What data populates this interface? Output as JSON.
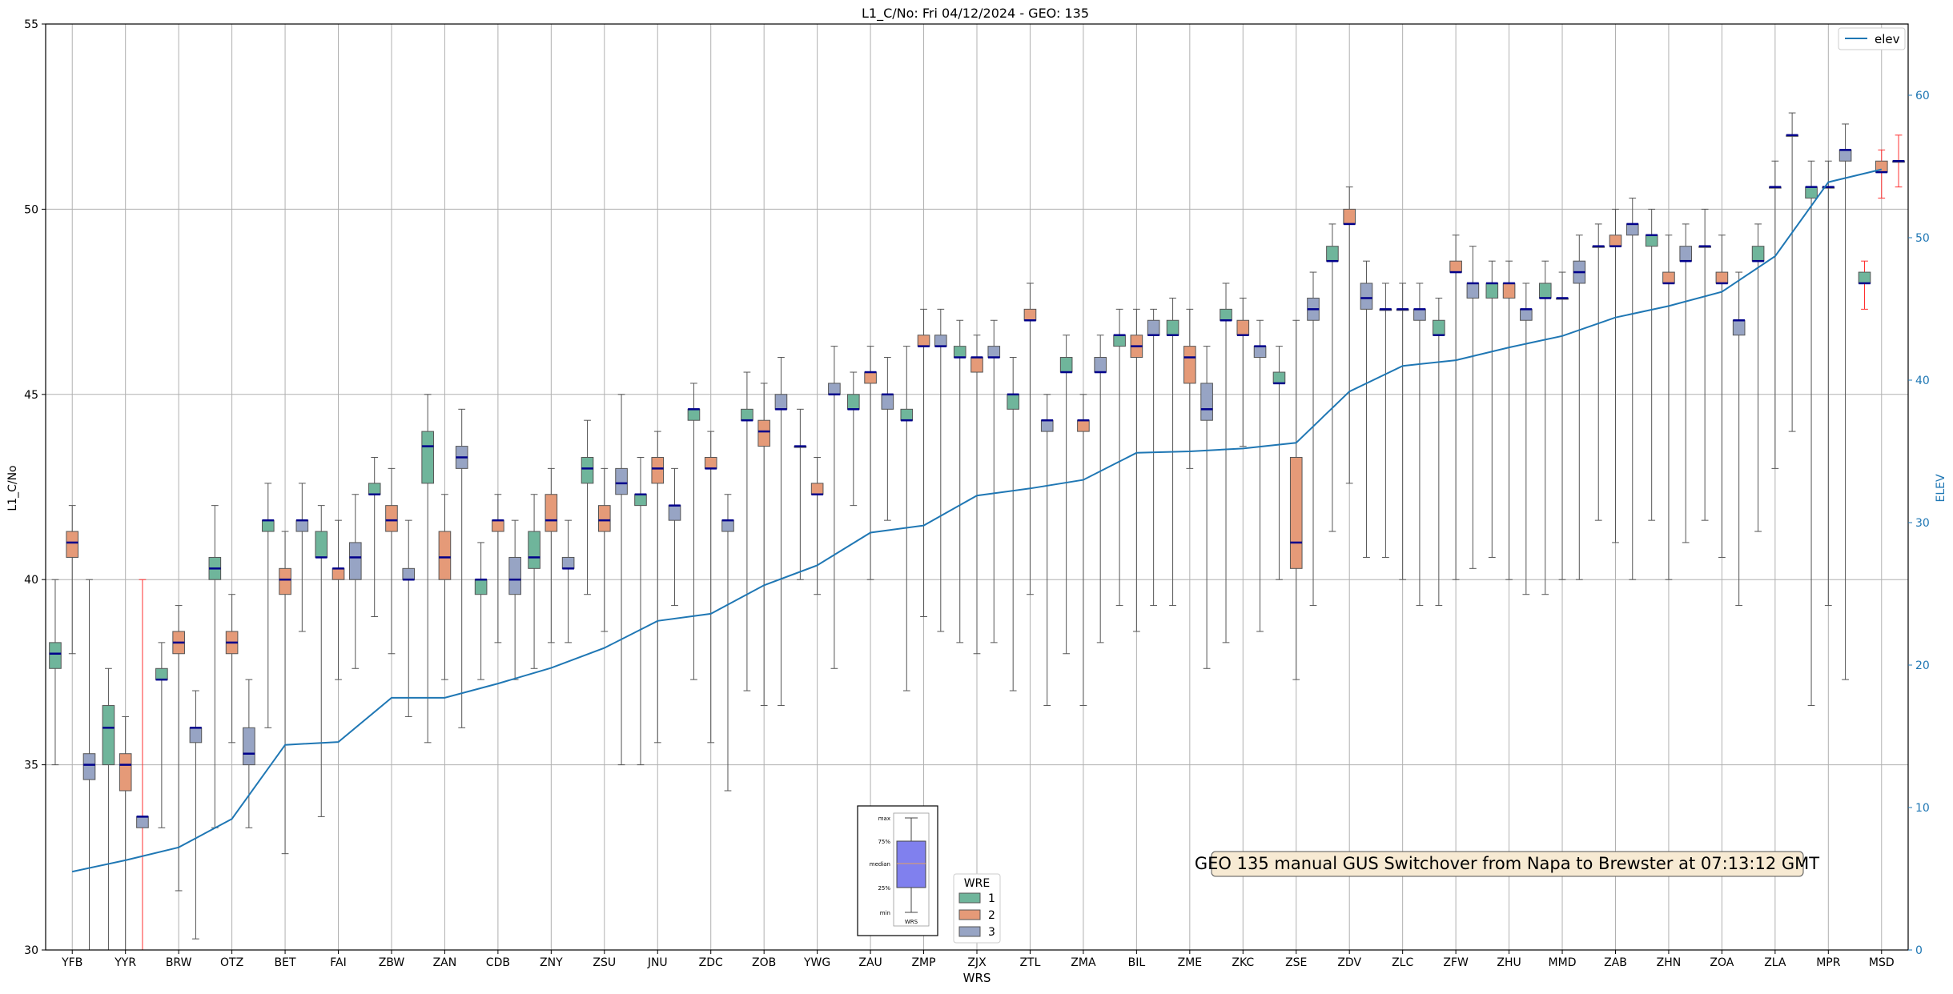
{
  "chart_data": {
    "type": "box",
    "title": "L1_C/No: Fri 04/12/2024 - GEO: 135",
    "xlabel": "WRS",
    "ylabel": "L1_C/No",
    "y2label": "ELEV",
    "ylim": [
      30,
      55
    ],
    "y2lim": [
      0,
      65
    ],
    "yticks": [
      30,
      35,
      40,
      45,
      50,
      55
    ],
    "y2ticks": [
      0,
      10,
      20,
      30,
      40,
      50,
      60
    ],
    "grid": true,
    "legend_line": {
      "label": "elev",
      "position": "top-right"
    },
    "legend_groups": {
      "title": "WRE",
      "position": "bottom-center",
      "entries": [
        "1",
        "2",
        "3"
      ]
    },
    "group_colors": {
      "1": "#6fb59b",
      "2": "#e59a78",
      "3": "#97a4c4"
    },
    "median_color": "#00008b",
    "whisker_color": "#555555",
    "elev_color": "#1f77b4",
    "annotation": "GEO 135 manual GUS Switchover from Napa to Brewster at 07:13:12 GMT",
    "key_inset": {
      "labels": [
        "max",
        "75%",
        "median",
        "25%",
        "min"
      ],
      "xlabel": "WRS",
      "box_color": "#8080ee"
    },
    "stations": [
      "YFB",
      "YYR",
      "BRW",
      "OTZ",
      "BET",
      "FAI",
      "ZBW",
      "ZAN",
      "CDB",
      "ZNY",
      "ZSU",
      "JNU",
      "ZDC",
      "ZOB",
      "YWG",
      "ZAU",
      "ZMP",
      "ZJX",
      "ZTL",
      "ZMA",
      "BIL",
      "ZME",
      "ZKC",
      "ZSE",
      "ZDV",
      "ZLC",
      "ZFW",
      "ZHU",
      "MMD",
      "ZAB",
      "ZHN",
      "ZOA",
      "ZLA",
      "MPR",
      "MSD"
    ],
    "elev": [
      5.5,
      6.3,
      7.2,
      9.2,
      14.4,
      14.6,
      17.7,
      17.7,
      18.7,
      19.8,
      21.2,
      23.1,
      23.6,
      25.6,
      27.0,
      29.3,
      29.8,
      31.9,
      32.4,
      33.0,
      34.9,
      35.0,
      35.2,
      35.6,
      39.2,
      41.0,
      41.4,
      42.3,
      43.1,
      44.4,
      45.2,
      46.2,
      48.7,
      53.9,
      54.8
    ],
    "boxes": [
      {
        "station": "YFB",
        "wre": "1",
        "min": 35.0,
        "q1": 37.6,
        "median": 38.0,
        "q3": 38.3,
        "max": 40.0
      },
      {
        "station": "YFB",
        "wre": "2",
        "min": 38.0,
        "q1": 40.6,
        "median": 41.0,
        "q3": 41.3,
        "max": 42.0
      },
      {
        "station": "YFB",
        "wre": "3",
        "min": 30.0,
        "q1": 34.6,
        "median": 35.0,
        "q3": 35.3,
        "max": 40.0
      },
      {
        "station": "YYR",
        "wre": "1",
        "min": 30.0,
        "q1": 35.0,
        "median": 36.0,
        "q3": 36.6,
        "max": 37.6
      },
      {
        "station": "YYR",
        "wre": "2",
        "min": 30.0,
        "q1": 34.3,
        "median": 35.0,
        "q3": 35.3,
        "max": 36.3
      },
      {
        "station": "YYR",
        "wre": "3",
        "min": 30.0,
        "q1": 33.3,
        "median": 33.6,
        "q3": 33.6,
        "max": 40.0,
        "red_whisker": true
      },
      {
        "station": "BRW",
        "wre": "1",
        "min": 33.3,
        "q1": 37.3,
        "median": 37.3,
        "q3": 37.6,
        "max": 38.3
      },
      {
        "station": "BRW",
        "wre": "2",
        "min": 31.6,
        "q1": 38.0,
        "median": 38.3,
        "q3": 38.6,
        "max": 39.3
      },
      {
        "station": "BRW",
        "wre": "3",
        "min": 30.3,
        "q1": 35.6,
        "median": 36.0,
        "q3": 36.0,
        "max": 37.0
      },
      {
        "station": "OTZ",
        "wre": "1",
        "min": 33.3,
        "q1": 40.0,
        "median": 40.3,
        "q3": 40.6,
        "max": 42.0
      },
      {
        "station": "OTZ",
        "wre": "2",
        "min": 35.6,
        "q1": 38.0,
        "median": 38.3,
        "q3": 38.6,
        "max": 39.6
      },
      {
        "station": "OTZ",
        "wre": "3",
        "min": 33.3,
        "q1": 35.0,
        "median": 35.3,
        "q3": 36.0,
        "max": 37.3
      },
      {
        "station": "BET",
        "wre": "1",
        "min": 36.0,
        "q1": 41.3,
        "median": 41.6,
        "q3": 41.6,
        "max": 42.6
      },
      {
        "station": "BET",
        "wre": "2",
        "min": 32.6,
        "q1": 39.6,
        "median": 40.0,
        "q3": 40.3,
        "max": 41.3
      },
      {
        "station": "BET",
        "wre": "3",
        "min": 38.6,
        "q1": 41.3,
        "median": 41.6,
        "q3": 41.6,
        "max": 42.6
      },
      {
        "station": "FAI",
        "wre": "1",
        "min": 33.6,
        "q1": 40.6,
        "median": 40.6,
        "q3": 41.3,
        "max": 42.0
      },
      {
        "station": "FAI",
        "wre": "2",
        "min": 37.3,
        "q1": 40.0,
        "median": 40.3,
        "q3": 40.3,
        "max": 41.6
      },
      {
        "station": "FAI",
        "wre": "3",
        "min": 37.6,
        "q1": 40.0,
        "median": 40.6,
        "q3": 41.0,
        "max": 42.3
      },
      {
        "station": "ZBW",
        "wre": "1",
        "min": 39.0,
        "q1": 42.3,
        "median": 42.3,
        "q3": 42.6,
        "max": 43.3
      },
      {
        "station": "ZBW",
        "wre": "2",
        "min": 38.0,
        "q1": 41.3,
        "median": 41.6,
        "q3": 42.0,
        "max": 43.0
      },
      {
        "station": "ZBW",
        "wre": "3",
        "min": 36.3,
        "q1": 40.0,
        "median": 40.0,
        "q3": 40.3,
        "max": 41.6
      },
      {
        "station": "ZAN",
        "wre": "1",
        "min": 35.6,
        "q1": 42.6,
        "median": 43.6,
        "q3": 44.0,
        "max": 45.0
      },
      {
        "station": "ZAN",
        "wre": "2",
        "min": 37.3,
        "q1": 40.0,
        "median": 40.6,
        "q3": 41.3,
        "max": 42.3
      },
      {
        "station": "ZAN",
        "wre": "3",
        "min": 36.0,
        "q1": 43.0,
        "median": 43.3,
        "q3": 43.6,
        "max": 44.6
      },
      {
        "station": "CDB",
        "wre": "1",
        "min": 37.3,
        "q1": 39.6,
        "median": 40.0,
        "q3": 40.0,
        "max": 41.0
      },
      {
        "station": "CDB",
        "wre": "2",
        "min": 38.3,
        "q1": 41.3,
        "median": 41.6,
        "q3": 41.6,
        "max": 42.3
      },
      {
        "station": "CDB",
        "wre": "3",
        "min": 37.3,
        "q1": 39.6,
        "median": 40.0,
        "q3": 40.6,
        "max": 41.6
      },
      {
        "station": "ZNY",
        "wre": "1",
        "min": 37.6,
        "q1": 40.3,
        "median": 40.6,
        "q3": 41.3,
        "max": 42.3
      },
      {
        "station": "ZNY",
        "wre": "2",
        "min": 38.3,
        "q1": 41.3,
        "median": 41.6,
        "q3": 42.3,
        "max": 43.0
      },
      {
        "station": "ZNY",
        "wre": "3",
        "min": 38.3,
        "q1": 40.3,
        "median": 40.3,
        "q3": 40.6,
        "max": 41.6
      },
      {
        "station": "ZSU",
        "wre": "1",
        "min": 39.6,
        "q1": 42.6,
        "median": 43.0,
        "q3": 43.3,
        "max": 44.3
      },
      {
        "station": "ZSU",
        "wre": "2",
        "min": 38.6,
        "q1": 41.3,
        "median": 41.6,
        "q3": 42.0,
        "max": 43.0
      },
      {
        "station": "ZSU",
        "wre": "3",
        "min": 35.0,
        "q1": 42.3,
        "median": 42.6,
        "q3": 43.0,
        "max": 45.0
      },
      {
        "station": "JNU",
        "wre": "1",
        "min": 35.0,
        "q1": 42.0,
        "median": 42.3,
        "q3": 42.3,
        "max": 43.3
      },
      {
        "station": "JNU",
        "wre": "2",
        "min": 35.6,
        "q1": 42.6,
        "median": 43.0,
        "q3": 43.3,
        "max": 44.0
      },
      {
        "station": "JNU",
        "wre": "3",
        "min": 39.3,
        "q1": 41.6,
        "median": 42.0,
        "q3": 42.0,
        "max": 43.0
      },
      {
        "station": "ZDC",
        "wre": "1",
        "min": 37.3,
        "q1": 44.3,
        "median": 44.6,
        "q3": 44.6,
        "max": 45.3
      },
      {
        "station": "ZDC",
        "wre": "2",
        "min": 35.6,
        "q1": 43.0,
        "median": 43.0,
        "q3": 43.3,
        "max": 44.0
      },
      {
        "station": "ZDC",
        "wre": "3",
        "min": 34.3,
        "q1": 41.3,
        "median": 41.6,
        "q3": 41.6,
        "max": 42.3
      },
      {
        "station": "ZOB",
        "wre": "1",
        "min": 37.0,
        "q1": 44.3,
        "median": 44.3,
        "q3": 44.6,
        "max": 45.6
      },
      {
        "station": "ZOB",
        "wre": "2",
        "min": 36.6,
        "q1": 43.6,
        "median": 44.0,
        "q3": 44.3,
        "max": 45.3
      },
      {
        "station": "ZOB",
        "wre": "3",
        "min": 36.6,
        "q1": 44.6,
        "median": 44.6,
        "q3": 45.0,
        "max": 46.0
      },
      {
        "station": "YWG",
        "wre": "1",
        "min": 40.0,
        "q1": 43.6,
        "median": 43.6,
        "q3": 43.6,
        "max": 44.6
      },
      {
        "station": "YWG",
        "wre": "2",
        "min": 39.6,
        "q1": 42.3,
        "median": 42.3,
        "q3": 42.6,
        "max": 43.3
      },
      {
        "station": "YWG",
        "wre": "3",
        "min": 37.6,
        "q1": 45.0,
        "median": 45.0,
        "q3": 45.3,
        "max": 46.3
      },
      {
        "station": "ZAU",
        "wre": "1",
        "min": 42.0,
        "q1": 44.6,
        "median": 44.6,
        "q3": 45.0,
        "max": 45.6
      },
      {
        "station": "ZAU",
        "wre": "2",
        "min": 40.0,
        "q1": 45.3,
        "median": 45.6,
        "q3": 45.6,
        "max": 46.3
      },
      {
        "station": "ZAU",
        "wre": "3",
        "min": 41.6,
        "q1": 44.6,
        "median": 45.0,
        "q3": 45.0,
        "max": 46.0
      },
      {
        "station": "ZMP",
        "wre": "1",
        "min": 37.0,
        "q1": 44.3,
        "median": 44.3,
        "q3": 44.6,
        "max": 46.3
      },
      {
        "station": "ZMP",
        "wre": "2",
        "min": 39.0,
        "q1": 46.3,
        "median": 46.3,
        "q3": 46.6,
        "max": 47.3
      },
      {
        "station": "ZMP",
        "wre": "3",
        "min": 38.6,
        "q1": 46.3,
        "median": 46.3,
        "q3": 46.6,
        "max": 47.3
      },
      {
        "station": "ZJX",
        "wre": "1",
        "min": 38.3,
        "q1": 46.0,
        "median": 46.0,
        "q3": 46.3,
        "max": 47.0
      },
      {
        "station": "ZJX",
        "wre": "2",
        "min": 38.0,
        "q1": 45.6,
        "median": 46.0,
        "q3": 46.0,
        "max": 46.6
      },
      {
        "station": "ZJX",
        "wre": "3",
        "min": 38.3,
        "q1": 46.0,
        "median": 46.0,
        "q3": 46.3,
        "max": 47.0
      },
      {
        "station": "ZTL",
        "wre": "1",
        "min": 37.0,
        "q1": 44.6,
        "median": 45.0,
        "q3": 45.0,
        "max": 46.0
      },
      {
        "station": "ZTL",
        "wre": "2",
        "min": 39.6,
        "q1": 47.0,
        "median": 47.0,
        "q3": 47.3,
        "max": 48.0
      },
      {
        "station": "ZTL",
        "wre": "3",
        "min": 36.6,
        "q1": 44.0,
        "median": 44.3,
        "q3": 44.3,
        "max": 45.0
      },
      {
        "station": "ZMA",
        "wre": "1",
        "min": 38.0,
        "q1": 45.6,
        "median": 45.6,
        "q3": 46.0,
        "max": 46.6
      },
      {
        "station": "ZMA",
        "wre": "2",
        "min": 36.6,
        "q1": 44.0,
        "median": 44.3,
        "q3": 44.3,
        "max": 45.0
      },
      {
        "station": "ZMA",
        "wre": "3",
        "min": 38.3,
        "q1": 45.6,
        "median": 45.6,
        "q3": 46.0,
        "max": 46.6
      },
      {
        "station": "BIL",
        "wre": "1",
        "min": 39.3,
        "q1": 46.3,
        "median": 46.6,
        "q3": 46.6,
        "max": 47.3
      },
      {
        "station": "BIL",
        "wre": "2",
        "min": 38.6,
        "q1": 46.0,
        "median": 46.3,
        "q3": 46.6,
        "max": 47.3
      },
      {
        "station": "BIL",
        "wre": "3",
        "min": 39.3,
        "q1": 46.6,
        "median": 46.6,
        "q3": 47.0,
        "max": 47.3
      },
      {
        "station": "ZME",
        "wre": "1",
        "min": 39.3,
        "q1": 46.6,
        "median": 46.6,
        "q3": 47.0,
        "max": 47.6
      },
      {
        "station": "ZME",
        "wre": "2",
        "min": 43.0,
        "q1": 45.3,
        "median": 46.0,
        "q3": 46.3,
        "max": 47.3
      },
      {
        "station": "ZME",
        "wre": "3",
        "min": 37.6,
        "q1": 44.3,
        "median": 44.6,
        "q3": 45.3,
        "max": 46.3
      },
      {
        "station": "ZKC",
        "wre": "1",
        "min": 38.3,
        "q1": 47.0,
        "median": 47.0,
        "q3": 47.3,
        "max": 48.0
      },
      {
        "station": "ZKC",
        "wre": "2",
        "min": 43.6,
        "q1": 46.6,
        "median": 46.6,
        "q3": 47.0,
        "max": 47.6
      },
      {
        "station": "ZKC",
        "wre": "3",
        "min": 38.6,
        "q1": 46.0,
        "median": 46.3,
        "q3": 46.3,
        "max": 47.0
      },
      {
        "station": "ZSE",
        "wre": "1",
        "min": 40.0,
        "q1": 45.3,
        "median": 45.3,
        "q3": 45.6,
        "max": 46.3
      },
      {
        "station": "ZSE",
        "wre": "2",
        "min": 37.3,
        "q1": 40.3,
        "median": 41.0,
        "q3": 43.3,
        "max": 47.0
      },
      {
        "station": "ZSE",
        "wre": "3",
        "min": 39.3,
        "q1": 47.0,
        "median": 47.3,
        "q3": 47.6,
        "max": 48.3
      },
      {
        "station": "ZDV",
        "wre": "1",
        "min": 41.3,
        "q1": 48.6,
        "median": 48.6,
        "q3": 49.0,
        "max": 49.6
      },
      {
        "station": "ZDV",
        "wre": "2",
        "min": 42.6,
        "q1": 49.6,
        "median": 49.6,
        "q3": 50.0,
        "max": 50.6
      },
      {
        "station": "ZDV",
        "wre": "3",
        "min": 40.6,
        "q1": 47.3,
        "median": 47.6,
        "q3": 48.0,
        "max": 48.6
      },
      {
        "station": "ZLC",
        "wre": "1",
        "min": 40.6,
        "q1": 47.3,
        "median": 47.3,
        "q3": 47.3,
        "max": 48.0
      },
      {
        "station": "ZLC",
        "wre": "2",
        "min": 40.0,
        "q1": 47.3,
        "median": 47.3,
        "q3": 47.3,
        "max": 48.0
      },
      {
        "station": "ZLC",
        "wre": "3",
        "min": 39.3,
        "q1": 47.0,
        "median": 47.3,
        "q3": 47.3,
        "max": 48.0
      },
      {
        "station": "ZFW",
        "wre": "1",
        "min": 39.3,
        "q1": 46.6,
        "median": 46.6,
        "q3": 47.0,
        "max": 47.6
      },
      {
        "station": "ZFW",
        "wre": "2",
        "min": 40.0,
        "q1": 48.3,
        "median": 48.3,
        "q3": 48.6,
        "max": 49.3
      },
      {
        "station": "ZFW",
        "wre": "3",
        "min": 40.3,
        "q1": 47.6,
        "median": 48.0,
        "q3": 48.0,
        "max": 49.0
      },
      {
        "station": "ZHU",
        "wre": "1",
        "min": 40.6,
        "q1": 47.6,
        "median": 48.0,
        "q3": 48.0,
        "max": 48.6
      },
      {
        "station": "ZHU",
        "wre": "2",
        "min": 40.0,
        "q1": 47.6,
        "median": 48.0,
        "q3": 48.0,
        "max": 48.6
      },
      {
        "station": "ZHU",
        "wre": "3",
        "min": 39.6,
        "q1": 47.0,
        "median": 47.3,
        "q3": 47.3,
        "max": 48.0
      },
      {
        "station": "MMD",
        "wre": "1",
        "min": 39.6,
        "q1": 47.6,
        "median": 47.6,
        "q3": 48.0,
        "max": 48.6
      },
      {
        "station": "MMD",
        "wre": "2",
        "min": 40.0,
        "q1": 47.6,
        "median": 47.6,
        "q3": 47.6,
        "max": 48.3
      },
      {
        "station": "MMD",
        "wre": "3",
        "min": 40.0,
        "q1": 48.0,
        "median": 48.3,
        "q3": 48.6,
        "max": 49.3
      },
      {
        "station": "ZAB",
        "wre": "1",
        "min": 41.6,
        "q1": 49.0,
        "median": 49.0,
        "q3": 49.0,
        "max": 49.6
      },
      {
        "station": "ZAB",
        "wre": "2",
        "min": 41.0,
        "q1": 49.0,
        "median": 49.0,
        "q3": 49.3,
        "max": 50.0
      },
      {
        "station": "ZAB",
        "wre": "3",
        "min": 40.0,
        "q1": 49.3,
        "median": 49.6,
        "q3": 49.6,
        "max": 50.3
      },
      {
        "station": "ZHN",
        "wre": "1",
        "min": 41.6,
        "q1": 49.0,
        "median": 49.3,
        "q3": 49.3,
        "max": 50.0
      },
      {
        "station": "ZHN",
        "wre": "2",
        "min": 40.0,
        "q1": 48.0,
        "median": 48.0,
        "q3": 48.3,
        "max": 49.3
      },
      {
        "station": "ZHN",
        "wre": "3",
        "min": 41.0,
        "q1": 48.6,
        "median": 48.6,
        "q3": 49.0,
        "max": 49.6
      },
      {
        "station": "ZOA",
        "wre": "1",
        "min": 41.6,
        "q1": 49.0,
        "median": 49.0,
        "q3": 49.0,
        "max": 50.0
      },
      {
        "station": "ZOA",
        "wre": "2",
        "min": 40.6,
        "q1": 48.0,
        "median": 48.0,
        "q3": 48.3,
        "max": 49.3
      },
      {
        "station": "ZOA",
        "wre": "3",
        "min": 39.3,
        "q1": 46.6,
        "median": 47.0,
        "q3": 47.0,
        "max": 48.3
      },
      {
        "station": "ZLA",
        "wre": "1",
        "min": 41.3,
        "q1": 48.6,
        "median": 48.6,
        "q3": 49.0,
        "max": 49.6
      },
      {
        "station": "ZLA",
        "wre": "2",
        "min": 43.0,
        "q1": 50.6,
        "median": 50.6,
        "q3": 50.6,
        "max": 51.3
      },
      {
        "station": "ZLA",
        "wre": "3",
        "min": 44.0,
        "q1": 52.0,
        "median": 52.0,
        "q3": 52.0,
        "max": 52.6
      },
      {
        "station": "MPR",
        "wre": "1",
        "min": 36.6,
        "q1": 50.3,
        "median": 50.6,
        "q3": 50.6,
        "max": 51.3
      },
      {
        "station": "MPR",
        "wre": "2",
        "min": 39.3,
        "q1": 50.6,
        "median": 50.6,
        "q3": 50.6,
        "max": 51.3
      },
      {
        "station": "MPR",
        "wre": "3",
        "min": 37.3,
        "q1": 51.3,
        "median": 51.6,
        "q3": 51.6,
        "max": 52.3
      },
      {
        "station": "MSD",
        "wre": "1",
        "min": 47.3,
        "q1": 48.0,
        "median": 48.0,
        "q3": 48.3,
        "max": 48.6,
        "red_whisker": true
      },
      {
        "station": "MSD",
        "wre": "2",
        "min": 50.3,
        "q1": 51.0,
        "median": 51.0,
        "q3": 51.3,
        "max": 51.6,
        "red_whisker": true
      },
      {
        "station": "MSD",
        "wre": "3",
        "min": 50.6,
        "q1": 51.3,
        "median": 51.3,
        "q3": 51.3,
        "max": 52.0,
        "red_whisker": true
      }
    ]
  }
}
